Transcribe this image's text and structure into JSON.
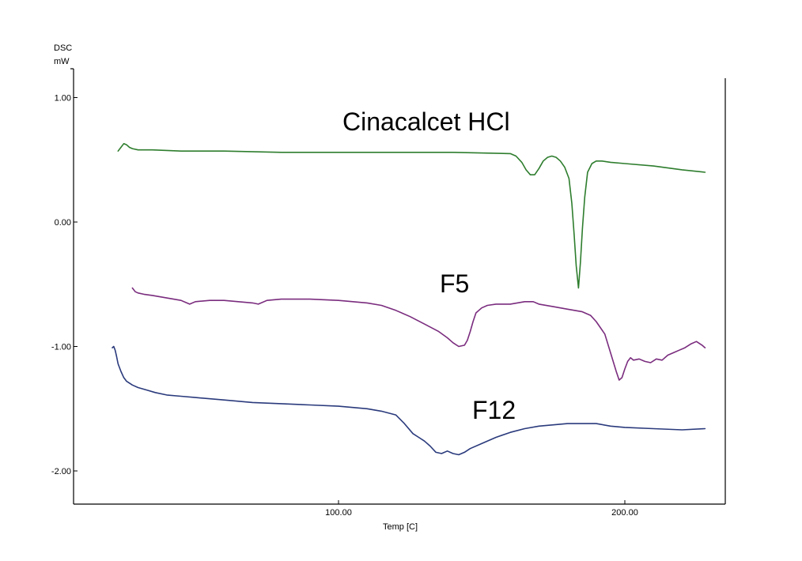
{
  "chart_data": {
    "type": "line",
    "xlabel": "Temp  [C]",
    "ylabel_line1": "DSC",
    "ylabel_line2": "mW",
    "xlim": [
      10,
      235
    ],
    "ylim": [
      -2.28,
      1.25
    ],
    "x_ticks": [
      100,
      200
    ],
    "x_tick_labels": [
      "100.00",
      "200.00"
    ],
    "y_ticks": [
      1,
      0,
      -1,
      -2
    ],
    "y_tick_labels": [
      "1.00",
      "0.00",
      "-1.00",
      "-2.00"
    ],
    "grid": false,
    "legend": "none",
    "annotations": [
      {
        "id": "cinacalcet",
        "text": "Cinacalcet HCl"
      },
      {
        "id": "f5",
        "text": "F5"
      },
      {
        "id": "f12",
        "text": "F12"
      }
    ],
    "series": [
      {
        "key": "cinacalcet",
        "color": "#2e7d2e",
        "x": [
          23,
          24,
          25,
          26,
          27,
          28,
          30,
          35,
          45,
          60,
          80,
          100,
          120,
          140,
          160,
          162,
          164,
          165.5,
          167,
          168.5,
          170,
          171.5,
          173,
          174.5,
          176,
          177.5,
          179,
          180.5,
          181.5,
          182.3,
          183,
          183.8,
          184.5,
          185.2,
          186,
          187,
          188.5,
          190,
          192,
          195,
          200,
          210,
          220,
          228
        ],
        "y": [
          0.57,
          0.6,
          0.63,
          0.62,
          0.6,
          0.59,
          0.58,
          0.58,
          0.57,
          0.57,
          0.56,
          0.56,
          0.56,
          0.56,
          0.55,
          0.53,
          0.48,
          0.42,
          0.38,
          0.38,
          0.43,
          0.49,
          0.52,
          0.53,
          0.52,
          0.49,
          0.44,
          0.35,
          0.15,
          -0.1,
          -0.35,
          -0.53,
          -0.32,
          -0.05,
          0.2,
          0.4,
          0.47,
          0.49,
          0.49,
          0.48,
          0.47,
          0.45,
          0.42,
          0.4
        ]
      },
      {
        "key": "f5",
        "color": "#7a2c7e",
        "x": [
          28,
          29,
          30,
          32,
          35,
          40,
          45,
          48,
          50,
          55,
          60,
          65,
          70,
          72,
          75,
          80,
          90,
          100,
          110,
          115,
          120,
          125,
          130,
          135,
          138,
          140,
          142,
          144,
          145,
          146,
          147,
          148,
          150,
          152,
          155,
          160,
          165,
          168,
          170,
          175,
          180,
          185,
          188,
          190,
          193,
          195,
          197,
          198,
          199,
          200,
          201,
          202,
          203,
          205,
          207,
          209,
          211,
          213,
          215,
          217,
          219,
          221,
          223,
          225,
          227,
          228
        ],
        "y": [
          -0.53,
          -0.56,
          -0.57,
          -0.58,
          -0.59,
          -0.61,
          -0.63,
          -0.66,
          -0.64,
          -0.63,
          -0.63,
          -0.64,
          -0.65,
          -0.66,
          -0.63,
          -0.62,
          -0.62,
          -0.63,
          -0.65,
          -0.67,
          -0.71,
          -0.76,
          -0.82,
          -0.88,
          -0.93,
          -0.97,
          -1.0,
          -0.99,
          -0.95,
          -0.88,
          -0.8,
          -0.73,
          -0.69,
          -0.67,
          -0.66,
          -0.66,
          -0.64,
          -0.64,
          -0.66,
          -0.68,
          -0.7,
          -0.72,
          -0.75,
          -0.8,
          -0.9,
          -1.05,
          -1.2,
          -1.27,
          -1.25,
          -1.18,
          -1.12,
          -1.09,
          -1.11,
          -1.1,
          -1.12,
          -1.13,
          -1.1,
          -1.11,
          -1.07,
          -1.05,
          -1.03,
          -1.01,
          -0.98,
          -0.96,
          -0.99,
          -1.01
        ]
      },
      {
        "key": "f12",
        "color": "#2a3a7c",
        "x": [
          21,
          21.5,
          22,
          22.5,
          23,
          24,
          25,
          26,
          28,
          30,
          33,
          36,
          40,
          45,
          50,
          60,
          70,
          80,
          90,
          100,
          110,
          115,
          120,
          123,
          126,
          128,
          130,
          132,
          134,
          136,
          138,
          140,
          142,
          144,
          146,
          150,
          155,
          160,
          165,
          170,
          180,
          190,
          195,
          200,
          210,
          220,
          228
        ],
        "y": [
          -1.01,
          -1.0,
          -1.03,
          -1.08,
          -1.14,
          -1.2,
          -1.25,
          -1.28,
          -1.31,
          -1.33,
          -1.35,
          -1.37,
          -1.39,
          -1.4,
          -1.41,
          -1.43,
          -1.45,
          -1.46,
          -1.47,
          -1.48,
          -1.5,
          -1.52,
          -1.55,
          -1.62,
          -1.7,
          -1.73,
          -1.76,
          -1.8,
          -1.85,
          -1.86,
          -1.84,
          -1.86,
          -1.87,
          -1.85,
          -1.82,
          -1.78,
          -1.73,
          -1.69,
          -1.66,
          -1.64,
          -1.62,
          -1.62,
          -1.64,
          -1.65,
          -1.66,
          -1.67,
          -1.66
        ]
      }
    ]
  }
}
